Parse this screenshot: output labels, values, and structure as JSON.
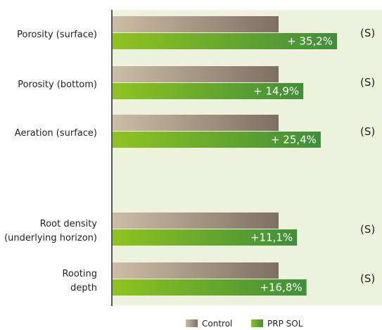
{
  "chart_data": {
    "type": "bar",
    "orientation": "horizontal",
    "categories": [
      [
        "Porosity (surface)"
      ],
      [
        "Porosity (bottom)"
      ],
      [
        "Aeration (surface)"
      ],
      [
        "Root density",
        "(underlying horizon)"
      ],
      [
        "Rooting",
        "depth"
      ]
    ],
    "series": [
      {
        "name": "Control",
        "values": [
          100,
          100,
          100,
          100,
          100
        ]
      },
      {
        "name": "PRP SOL",
        "values": [
          135.2,
          114.9,
          125.4,
          111.1,
          116.8
        ]
      }
    ],
    "value_labels": [
      "+ 35,2%",
      "+ 14,9%",
      "+ 25,4%",
      "+11,1%",
      "+16,8%"
    ],
    "significance": [
      "(S)",
      "(S)",
      "(S)",
      "(S)",
      "(S)"
    ],
    "legend_position": "bottom-right",
    "grid": false
  },
  "colors": {
    "plot_background": "#edf2dc",
    "control_gradient": [
      "#cdbda6",
      "#7e6f62"
    ],
    "prp_gradient": [
      "#8fc320",
      "#3f8e3a"
    ],
    "axis": "#231f20"
  }
}
